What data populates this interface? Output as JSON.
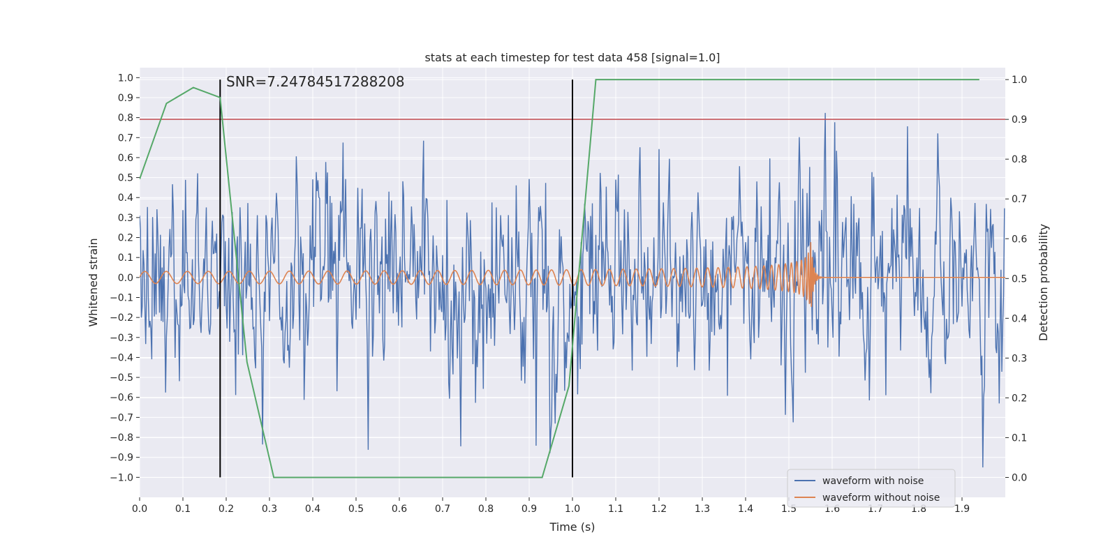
{
  "chart_data": {
    "type": "line",
    "title": "stats at each timestep for test data 458 [signal=1.0]",
    "xlabel": "Time (s)",
    "ylabel": "Whitened strain",
    "ylabel_right": "Detection probability",
    "xlim": [
      0.0,
      2.0
    ],
    "ylim": [
      -1.1,
      1.05
    ],
    "ylim_right": [
      -0.05,
      1.03
    ],
    "x_ticks": [
      "0.0",
      "0.1",
      "0.2",
      "0.3",
      "0.4",
      "0.5",
      "0.6",
      "0.7",
      "0.8",
      "0.9",
      "1.0",
      "1.1",
      "1.2",
      "1.3",
      "1.4",
      "1.5",
      "1.6",
      "1.7",
      "1.8",
      "1.9"
    ],
    "y_ticks": [
      "1.0",
      "0.9",
      "0.8",
      "0.7",
      "0.6",
      "0.5",
      "0.4",
      "0.3",
      "0.2",
      "0.1",
      "0.0",
      "−0.1",
      "−0.2",
      "−0.3",
      "−0.4",
      "−0.5",
      "−0.6",
      "−0.7",
      "−0.8",
      "−0.9",
      "−1.0"
    ],
    "y_ticks_right": [
      "1.0",
      "0.9",
      "0.8",
      "0.7",
      "0.6",
      "0.5",
      "0.4",
      "0.3",
      "0.2",
      "0.1",
      "0.0"
    ],
    "grid": true,
    "annotation": "SNR=7.24784517288208",
    "threshold": 0.9,
    "vertical_lines": [
      0.186,
      1.0
    ],
    "series": [
      {
        "name": "waveform with noise",
        "color": "#4c72b0",
        "axis": "left",
        "kind": "noise",
        "description_values": {
          "start": 0.0,
          "end": 2.0,
          "step": 0.002,
          "amplitude_range": [
            -1.0,
            0.95
          ]
        }
      },
      {
        "name": "waveform without noise",
        "color": "#dd8452",
        "axis": "left",
        "kind": "chirp",
        "description_values": {
          "merger_time": 1.55,
          "base_amplitude": 0.03,
          "peak_amplitude": 0.22
        }
      },
      {
        "name": "detection probability",
        "color": "#55a868",
        "axis": "right",
        "x": [
          0.0,
          0.062,
          0.124,
          0.186,
          0.248,
          0.31,
          0.372,
          0.434,
          0.496,
          0.558,
          0.62,
          0.682,
          0.744,
          0.806,
          0.868,
          0.93,
          0.992,
          1.054,
          1.116,
          1.178,
          1.24,
          1.302,
          1.364,
          1.426,
          1.488,
          1.55,
          1.612,
          1.674,
          1.736,
          1.798,
          1.86,
          1.94
        ],
        "values": [
          0.75,
          0.94,
          0.98,
          0.955,
          0.29,
          0.0,
          0.0,
          0.0,
          0.0,
          0.0,
          0.0,
          0.0,
          0.0,
          0.0,
          0.0,
          0.0,
          0.23,
          1.0,
          1.0,
          1.0,
          1.0,
          1.0,
          1.0,
          1.0,
          1.0,
          1.0,
          1.0,
          1.0,
          1.0,
          1.0,
          1.0,
          1.0
        ]
      }
    ],
    "colors": {
      "threshold": "#c44e52",
      "vline": "#000000",
      "background": "#eaeaf2",
      "grid": "#ffffff"
    }
  },
  "legend": {
    "items": [
      {
        "label": "waveform with noise",
        "color": "#4c72b0"
      },
      {
        "label": "waveform without noise",
        "color": "#dd8452"
      }
    ]
  }
}
